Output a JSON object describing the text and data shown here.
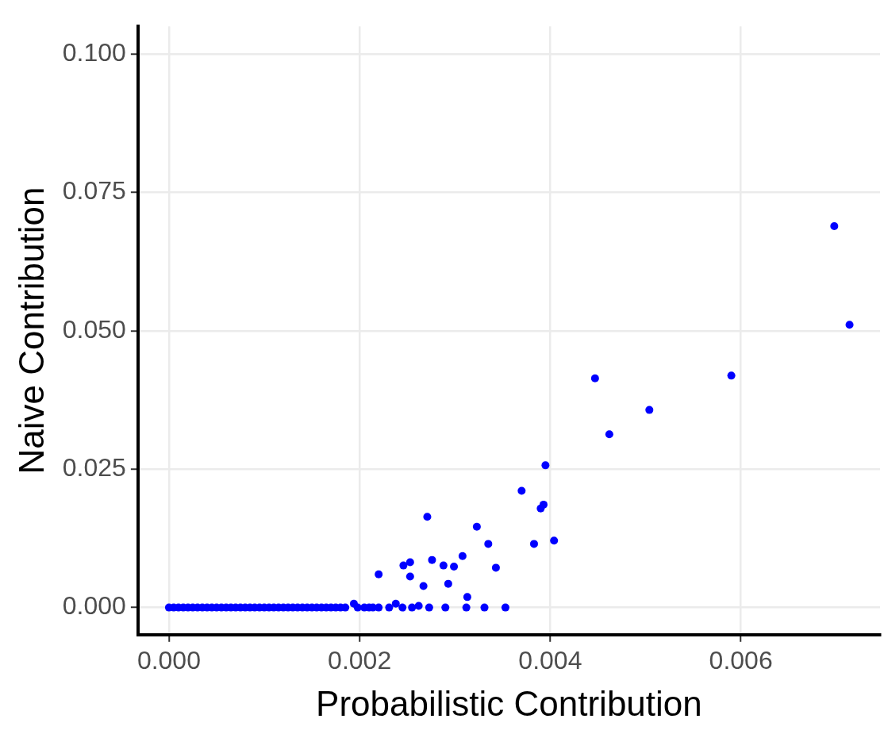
{
  "chart_data": {
    "type": "scatter",
    "xlabel": "Probabilistic Contribution",
    "ylabel": "Naive Contribution",
    "x": [
      0,
      5e-05,
      0.0001,
      0.00015,
      0.0002,
      0.00025,
      0.0003,
      0.00035,
      0.0004,
      0.00045,
      0.0005,
      0.00055,
      0.0006,
      0.00065,
      0.0007,
      0.00075,
      0.0008,
      0.00085,
      0.0009,
      0.00095,
      0.001,
      0.00105,
      0.0011,
      0.00115,
      0.0012,
      0.00125,
      0.0013,
      0.00135,
      0.0014,
      0.00145,
      0.0015,
      0.00155,
      0.0016,
      0.00165,
      0.0017,
      0.00175,
      0.0018,
      0.00185,
      0.00194,
      0.00198,
      0.00205,
      0.0021,
      0.00214,
      0.0022,
      0.00231,
      0.00238,
      0.00245,
      0.00255,
      0.00262,
      0.00273,
      0.0029,
      0.00312,
      0.00331,
      0.00353,
      0.00698,
      0.00714,
      0.0059,
      0.00447,
      0.00504,
      0.00462,
      0.00395,
      0.0037,
      0.00393,
      0.0039,
      0.00271,
      0.00323,
      0.00335,
      0.00383,
      0.00404,
      0.00308,
      0.00276,
      0.00288,
      0.00299,
      0.00246,
      0.00253,
      0.00343,
      0.0022,
      0.00253,
      0.00267,
      0.00293,
      0.00313
    ],
    "values": [
      0,
      0,
      0,
      0,
      0,
      0,
      0,
      0,
      0,
      0,
      0,
      0,
      0,
      0,
      0,
      0,
      0,
      0,
      0,
      0,
      0,
      0,
      0,
      0,
      0,
      0,
      0,
      0,
      0,
      0,
      0,
      0,
      0,
      0,
      0,
      0,
      0,
      0,
      0.0007,
      0,
      0,
      0,
      0,
      0,
      0,
      0.0007,
      0,
      0,
      0.0003,
      0,
      0,
      0,
      0,
      0,
      0.0689,
      0.0511,
      0.0419,
      0.0414,
      0.0357,
      0.0313,
      0.0257,
      0.0211,
      0.0186,
      0.0179,
      0.0164,
      0.0146,
      0.0115,
      0.0115,
      0.0121,
      0.0093,
      0.0086,
      0.0076,
      0.0074,
      0.0076,
      0.0082,
      0.0072,
      0.006,
      0.0056,
      0.0039,
      0.0043,
      0.0019
    ],
    "color": "#0000ff",
    "marker": "circle",
    "xlim": [
      -0.000325,
      0.00746
    ],
    "ylim": [
      -0.0049,
      0.105
    ],
    "xticks": [
      {
        "value": 0,
        "label": "0.000"
      },
      {
        "value": 0.002,
        "label": "0.002"
      },
      {
        "value": 0.004,
        "label": "0.004"
      },
      {
        "value": 0.006,
        "label": "0.006"
      }
    ],
    "yticks": [
      {
        "value": 0,
        "label": "0.000"
      },
      {
        "value": 0.025,
        "label": "0.025"
      },
      {
        "value": 0.05,
        "label": "0.050"
      },
      {
        "value": 0.075,
        "label": "0.075"
      },
      {
        "value": 0.1,
        "label": "0.100"
      }
    ],
    "grid": true,
    "legend": false
  }
}
